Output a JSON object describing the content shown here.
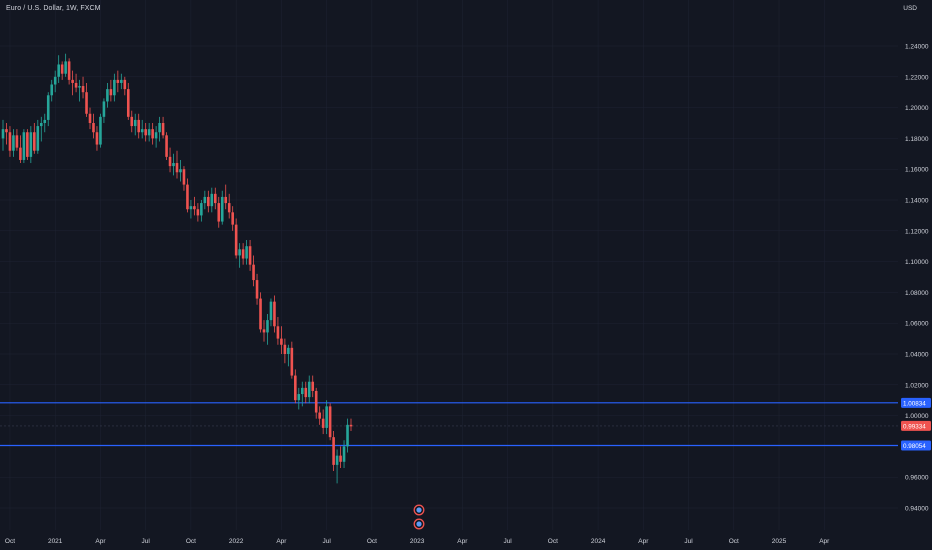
{
  "header": {
    "title": "Euro / U.S. Dollar, 1W, FXCM",
    "currency": "USD"
  },
  "colors": {
    "background": "#131722",
    "up": "#26a69a",
    "down": "#ef5350",
    "line": "#2962ff",
    "text": "#d1d4dc",
    "grid": "#1f2433"
  },
  "chart_data": {
    "type": "candlestick",
    "yaxis": {
      "ticks": [
        {
          "value": 1.24,
          "label": "1.24000"
        },
        {
          "value": 1.22,
          "label": "1.22000"
        },
        {
          "value": 1.2,
          "label": "1.20000"
        },
        {
          "value": 1.18,
          "label": "1.18000"
        },
        {
          "value": 1.16,
          "label": "1.16000"
        },
        {
          "value": 1.14,
          "label": "1.14000"
        },
        {
          "value": 1.12,
          "label": "1.12000"
        },
        {
          "value": 1.1,
          "label": "1.10000"
        },
        {
          "value": 1.08,
          "label": "1.08000"
        },
        {
          "value": 1.06,
          "label": "1.06000"
        },
        {
          "value": 1.04,
          "label": "1.04000"
        },
        {
          "value": 1.02,
          "label": "1.02000"
        },
        {
          "value": 1.0,
          "label": "1.00000"
        },
        {
          "value": 0.96,
          "label": "0.96000"
        },
        {
          "value": 0.94,
          "label": "0.94000"
        }
      ]
    },
    "xaxis": {
      "ticks": [
        {
          "index": 2,
          "label": "Oct"
        },
        {
          "index": 15,
          "label": "2021"
        },
        {
          "index": 28,
          "label": "Apr"
        },
        {
          "index": 41,
          "label": "Jul"
        },
        {
          "index": 54,
          "label": "Oct"
        },
        {
          "index": 67,
          "label": "2022"
        },
        {
          "index": 80,
          "label": "Apr"
        },
        {
          "index": 93,
          "label": "Jul"
        },
        {
          "index": 106,
          "label": "Oct"
        },
        {
          "index": 119,
          "label": "2023"
        },
        {
          "index": 132,
          "label": "Apr"
        },
        {
          "index": 145,
          "label": "Jul"
        },
        {
          "index": 158,
          "label": "Oct"
        },
        {
          "index": 171,
          "label": "2024"
        },
        {
          "index": 184,
          "label": "Apr"
        },
        {
          "index": 197,
          "label": "Jul"
        },
        {
          "index": 210,
          "label": "Oct"
        },
        {
          "index": 223,
          "label": "2025"
        },
        {
          "index": 236,
          "label": "Apr"
        }
      ]
    },
    "horizontal_lines": [
      {
        "value": 1.0083,
        "label": "1.00834"
      },
      {
        "value": 0.9806,
        "label": "0.98054"
      }
    ],
    "last_price": {
      "value": 0.9933,
      "label": "0.99334"
    },
    "candles": [
      [
        1.18,
        1.192,
        1.172,
        1.186
      ],
      [
        1.186,
        1.19,
        1.176,
        1.184
      ],
      [
        1.184,
        1.188,
        1.168,
        1.172
      ],
      [
        1.172,
        1.186,
        1.168,
        1.182
      ],
      [
        1.182,
        1.186,
        1.172,
        1.174
      ],
      [
        1.174,
        1.182,
        1.164,
        1.166
      ],
      [
        1.166,
        1.186,
        1.164,
        1.184
      ],
      [
        1.184,
        1.186,
        1.166,
        1.168
      ],
      [
        1.168,
        1.188,
        1.164,
        1.184
      ],
      [
        1.184,
        1.19,
        1.17,
        1.172
      ],
      [
        1.172,
        1.192,
        1.17,
        1.188
      ],
      [
        1.188,
        1.194,
        1.178,
        1.19
      ],
      [
        1.19,
        1.196,
        1.184,
        1.192
      ],
      [
        1.192,
        1.21,
        1.188,
        1.208
      ],
      [
        1.208,
        1.218,
        1.204,
        1.215
      ],
      [
        1.215,
        1.224,
        1.21,
        1.22
      ],
      [
        1.22,
        1.234,
        1.216,
        1.228
      ],
      [
        1.228,
        1.23,
        1.218,
        1.222
      ],
      [
        1.222,
        1.235,
        1.22,
        1.23
      ],
      [
        1.23,
        1.232,
        1.215,
        1.218
      ],
      [
        1.218,
        1.224,
        1.208,
        1.216
      ],
      [
        1.216,
        1.222,
        1.21,
        1.213
      ],
      [
        1.213,
        1.218,
        1.204,
        1.214
      ],
      [
        1.214,
        1.22,
        1.206,
        1.21
      ],
      [
        1.21,
        1.216,
        1.194,
        1.196
      ],
      [
        1.196,
        1.2,
        1.186,
        1.19
      ],
      [
        1.19,
        1.196,
        1.18,
        1.184
      ],
      [
        1.184,
        1.188,
        1.172,
        1.176
      ],
      [
        1.176,
        1.196,
        1.174,
        1.194
      ],
      [
        1.194,
        1.206,
        1.19,
        1.204
      ],
      [
        1.204,
        1.216,
        1.2,
        1.212
      ],
      [
        1.212,
        1.218,
        1.204,
        1.208
      ],
      [
        1.208,
        1.222,
        1.204,
        1.218
      ],
      [
        1.218,
        1.224,
        1.21,
        1.216
      ],
      [
        1.216,
        1.222,
        1.212,
        1.218
      ],
      [
        1.218,
        1.22,
        1.208,
        1.212
      ],
      [
        1.212,
        1.216,
        1.192,
        1.194
      ],
      [
        1.194,
        1.198,
        1.184,
        1.188
      ],
      [
        1.188,
        1.196,
        1.182,
        1.192
      ],
      [
        1.192,
        1.196,
        1.18,
        1.184
      ],
      [
        1.184,
        1.192,
        1.18,
        1.186
      ],
      [
        1.186,
        1.19,
        1.178,
        1.182
      ],
      [
        1.182,
        1.19,
        1.178,
        1.186
      ],
      [
        1.186,
        1.19,
        1.176,
        1.18
      ],
      [
        1.18,
        1.188,
        1.174,
        1.184
      ],
      [
        1.184,
        1.194,
        1.178,
        1.19
      ],
      [
        1.19,
        1.194,
        1.18,
        1.182
      ],
      [
        1.182,
        1.184,
        1.166,
        1.168
      ],
      [
        1.168,
        1.174,
        1.158,
        1.162
      ],
      [
        1.162,
        1.17,
        1.156,
        1.164
      ],
      [
        1.164,
        1.172,
        1.154,
        1.158
      ],
      [
        1.158,
        1.166,
        1.152,
        1.16
      ],
      [
        1.16,
        1.162,
        1.146,
        1.15
      ],
      [
        1.15,
        1.154,
        1.132,
        1.134
      ],
      [
        1.134,
        1.14,
        1.128,
        1.136
      ],
      [
        1.136,
        1.142,
        1.13,
        1.134
      ],
      [
        1.134,
        1.138,
        1.126,
        1.13
      ],
      [
        1.13,
        1.14,
        1.126,
        1.138
      ],
      [
        1.138,
        1.146,
        1.134,
        1.142
      ],
      [
        1.142,
        1.146,
        1.132,
        1.136
      ],
      [
        1.136,
        1.148,
        1.132,
        1.144
      ],
      [
        1.144,
        1.148,
        1.134,
        1.138
      ],
      [
        1.138,
        1.142,
        1.122,
        1.126
      ],
      [
        1.126,
        1.146,
        1.124,
        1.142
      ],
      [
        1.142,
        1.15,
        1.134,
        1.138
      ],
      [
        1.138,
        1.144,
        1.128,
        1.132
      ],
      [
        1.132,
        1.136,
        1.12,
        1.124
      ],
      [
        1.124,
        1.128,
        1.102,
        1.104
      ],
      [
        1.104,
        1.112,
        1.096,
        1.108
      ],
      [
        1.108,
        1.112,
        1.098,
        1.102
      ],
      [
        1.102,
        1.114,
        1.098,
        1.11
      ],
      [
        1.11,
        1.114,
        1.094,
        1.098
      ],
      [
        1.098,
        1.104,
        1.084,
        1.088
      ],
      [
        1.088,
        1.092,
        1.072,
        1.076
      ],
      [
        1.076,
        1.08,
        1.054,
        1.056
      ],
      [
        1.056,
        1.062,
        1.048,
        1.054
      ],
      [
        1.054,
        1.066,
        1.046,
        1.062
      ],
      [
        1.062,
        1.076,
        1.058,
        1.074
      ],
      [
        1.074,
        1.078,
        1.054,
        1.058
      ],
      [
        1.058,
        1.064,
        1.046,
        1.05
      ],
      [
        1.05,
        1.058,
        1.04,
        1.046
      ],
      [
        1.046,
        1.05,
        1.034,
        1.04
      ],
      [
        1.04,
        1.046,
        1.032,
        1.044
      ],
      [
        1.044,
        1.048,
        1.024,
        1.026
      ],
      [
        1.026,
        1.03,
        1.008,
        1.01
      ],
      [
        1.01,
        1.018,
        1.004,
        1.014
      ],
      [
        1.014,
        1.022,
        1.006,
        1.018
      ],
      [
        1.018,
        1.022,
        1.008,
        1.012
      ],
      [
        1.012,
        1.026,
        1.008,
        1.022
      ],
      [
        1.022,
        1.026,
        1.012,
        1.016
      ],
      [
        1.016,
        1.018,
        0.998,
        1.002
      ],
      [
        1.002,
        1.006,
        0.994,
        0.998
      ],
      [
        0.998,
        1.004,
        0.988,
        0.992
      ],
      [
        0.992,
        1.01,
        0.988,
        1.006
      ],
      [
        1.006,
        1.008,
        0.984,
        0.986
      ],
      [
        0.986,
        0.99,
        0.964,
        0.968
      ],
      [
        0.968,
        0.978,
        0.956,
        0.974
      ],
      [
        0.974,
        0.98,
        0.966,
        0.97
      ],
      [
        0.97,
        0.984,
        0.966,
        0.98
      ],
      [
        0.98,
        0.998,
        0.976,
        0.994
      ],
      [
        0.994,
        0.998,
        0.99,
        0.993
      ]
    ]
  }
}
